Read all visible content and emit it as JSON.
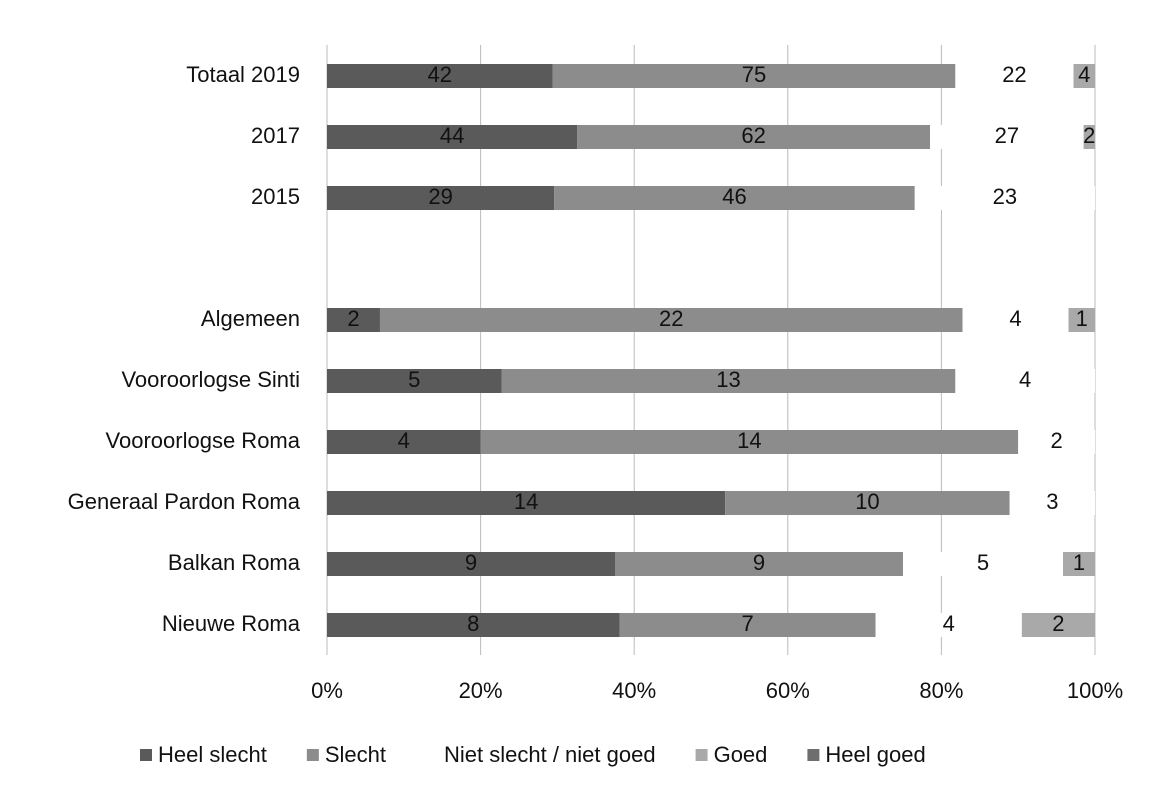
{
  "chart_data": {
    "type": "bar",
    "orientation": "horizontal",
    "stacked": "percent",
    "categories": [
      "Totaal 2019",
      "2017",
      "2015",
      null,
      "Algemeen",
      "Vooroorlogse Sinti",
      "Vooroorlogse Roma",
      "Generaal Pardon Roma",
      "Balkan Roma",
      "Nieuwe Roma"
    ],
    "series": [
      {
        "name": "Heel slecht",
        "color": "#5a5a5a",
        "values": [
          42,
          44,
          29,
          null,
          2,
          5,
          4,
          14,
          9,
          8
        ]
      },
      {
        "name": "Slecht",
        "color": "#8c8c8c",
        "values": [
          75,
          62,
          46,
          null,
          22,
          13,
          14,
          10,
          9,
          7
        ]
      },
      {
        "name": "Niet slecht / niet goed",
        "color": "#ffffff",
        "values": [
          22,
          27,
          23,
          null,
          4,
          4,
          2,
          3,
          5,
          4
        ]
      },
      {
        "name": "Goed",
        "color": "#a9a9a9",
        "values": [
          4,
          2,
          null,
          null,
          1,
          null,
          null,
          null,
          1,
          2
        ]
      },
      {
        "name": "Heel goed",
        "color": "#6e6e6e",
        "values": [
          null,
          null,
          null,
          null,
          null,
          null,
          null,
          null,
          null,
          null
        ]
      }
    ],
    "xlim": [
      0,
      100
    ],
    "xticks": [
      {
        "value": 0,
        "label": "0%"
      },
      {
        "value": 20,
        "label": "20%"
      },
      {
        "value": 40,
        "label": "40%"
      },
      {
        "value": 60,
        "label": "60%"
      },
      {
        "value": 80,
        "label": "80%"
      },
      {
        "value": 100,
        "label": "100%"
      }
    ],
    "grid": true,
    "legend": "bottom"
  }
}
